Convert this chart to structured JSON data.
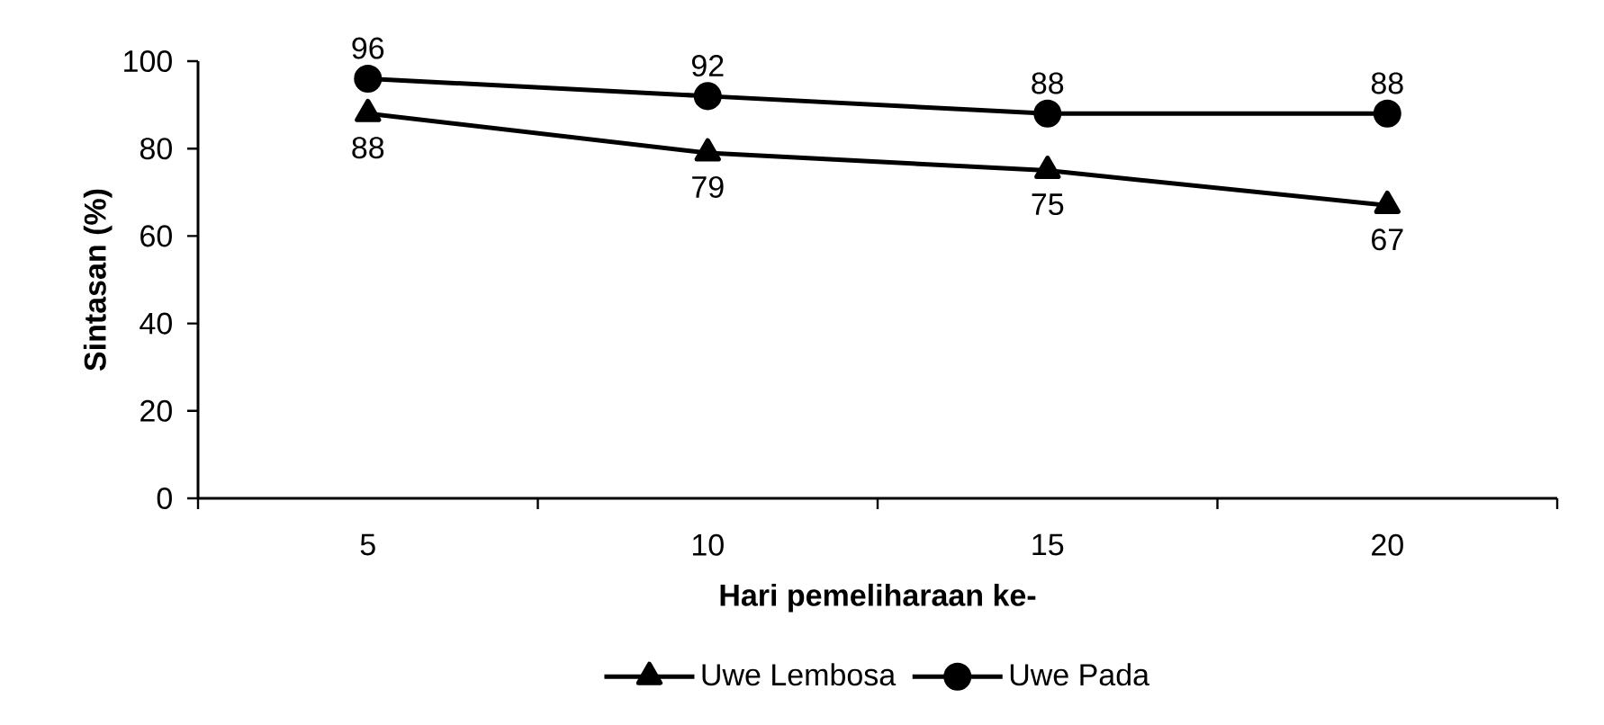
{
  "chart_data": {
    "type": "line",
    "xlabel": "Hari pemeliharaan ke-",
    "ylabel": "Sintasan (%)",
    "categories": [
      "5",
      "10",
      "15",
      "20"
    ],
    "series": [
      {
        "name": "Uwe Lembosa",
        "color": "#000000",
        "marker": "triangle",
        "values": [
          88,
          79,
          75,
          67
        ]
      },
      {
        "name": "Uwe Pada",
        "color": "#000000",
        "marker": "circle",
        "values": [
          96,
          92,
          88,
          88
        ]
      }
    ],
    "ylim": [
      0,
      100
    ],
    "yticks": [
      0,
      20,
      40,
      60,
      80,
      100
    ],
    "data_labels": true,
    "legend": "bottom",
    "grid": false
  }
}
